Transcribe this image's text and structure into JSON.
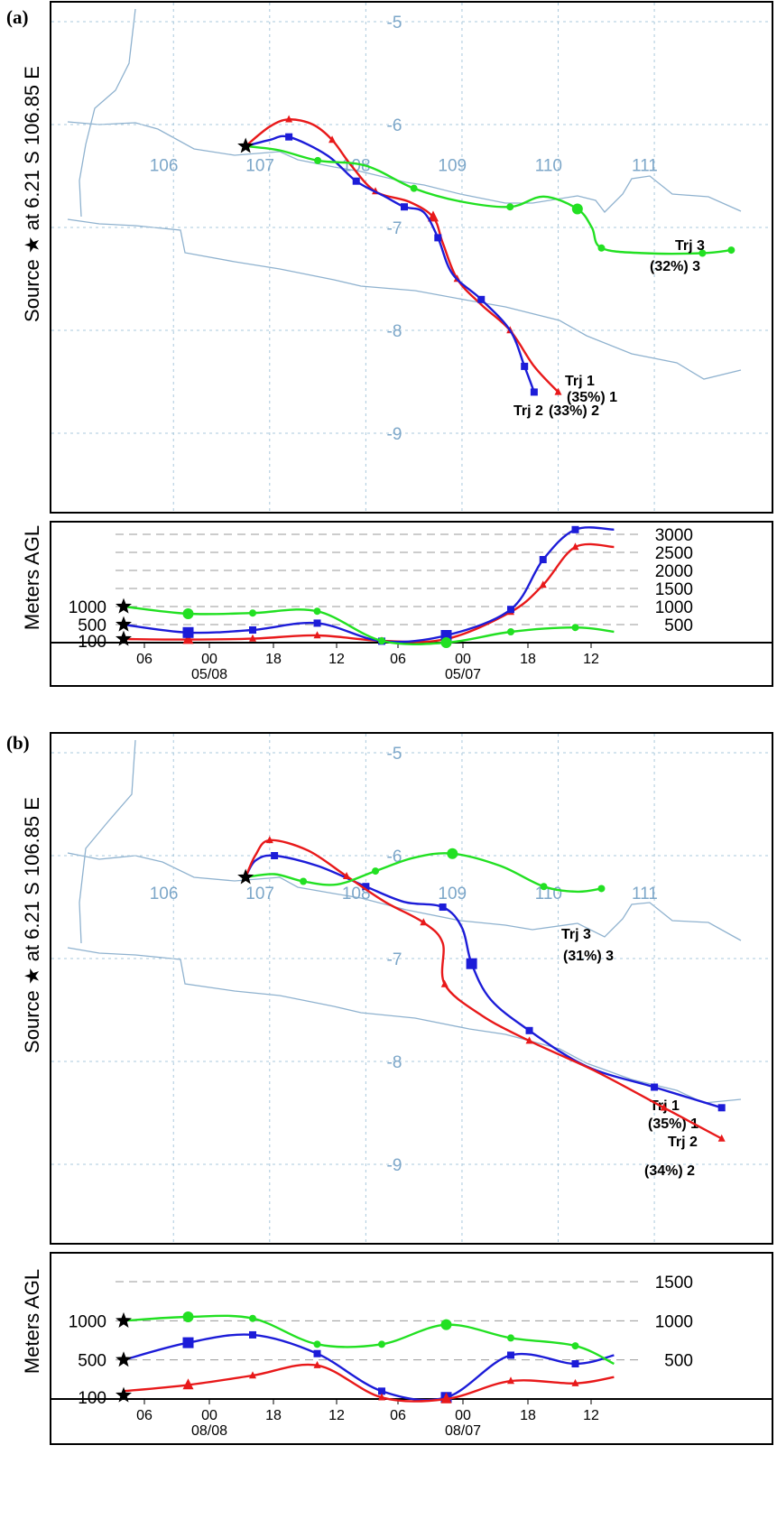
{
  "colors": {
    "red": "#e8191a",
    "blue": "#1c1cd8",
    "green": "#22e022",
    "coast": "#8fb2cf",
    "grid": "#a9c8dc"
  },
  "chart_data": [
    {
      "type": "line",
      "panel_label": "(a)",
      "ylabel": "Source ★ at 6.21 S 106.85 E",
      "height_ylabel": "Meters AGL",
      "source": {
        "lon": 106.85,
        "lat": -6.21
      },
      "lat_ticks": [
        -5,
        -6,
        -7,
        -8,
        -9
      ],
      "lon_ticks": [
        106,
        107,
        108,
        109,
        110,
        111
      ],
      "lon_label_lat": -6.45,
      "height_ticks_right": [
        500,
        1000,
        1500,
        2000,
        2500,
        3000
      ],
      "height_ticks_left": [
        100,
        500,
        1000
      ],
      "hmax": 3200,
      "time_ticks": [
        {
          "label": "06",
          "date": ""
        },
        {
          "label": "00",
          "date": "05/08"
        },
        {
          "label": "18",
          "date": ""
        },
        {
          "label": "12",
          "date": ""
        },
        {
          "label": "06",
          "date": ""
        },
        {
          "label": "00",
          "date": "05/07"
        },
        {
          "label": "18",
          "date": ""
        },
        {
          "label": "12",
          "date": ""
        }
      ],
      "series": [
        {
          "name": "Trj 1",
          "percent_label": "(35%) 1",
          "color": "red",
          "marker": "triangle",
          "start_height": 100,
          "path": [
            [
              106.85,
              -6.21
            ],
            [
              107.1,
              -6.02
            ],
            [
              107.3,
              -5.95
            ],
            [
              107.55,
              -6.0
            ],
            [
              107.75,
              -6.15
            ],
            [
              107.95,
              -6.4
            ],
            [
              108.2,
              -6.65
            ],
            [
              108.55,
              -6.75
            ],
            [
              108.8,
              -6.9
            ],
            [
              108.9,
              -7.15
            ],
            [
              109.05,
              -7.5
            ],
            [
              109.3,
              -7.75
            ],
            [
              109.6,
              -8.0
            ],
            [
              109.85,
              -8.35
            ],
            [
              110.1,
              -8.6
            ]
          ],
          "heights": [
            [
              0,
              100
            ],
            [
              1,
              85
            ],
            [
              2,
              110
            ],
            [
              3,
              200
            ],
            [
              4,
              50
            ],
            [
              5,
              100
            ],
            [
              6,
              850
            ],
            [
              6.5,
              1600
            ],
            [
              7,
              2650
            ],
            [
              7.6,
              2650
            ]
          ]
        },
        {
          "name": "Trj 2",
          "percent_label": "(33%) 2",
          "color": "blue",
          "marker": "square",
          "start_height": 500,
          "path": [
            [
              106.85,
              -6.21
            ],
            [
              107.1,
              -6.15
            ],
            [
              107.3,
              -6.12
            ],
            [
              107.7,
              -6.3
            ],
            [
              108.0,
              -6.55
            ],
            [
              108.3,
              -6.7
            ],
            [
              108.5,
              -6.8
            ],
            [
              108.7,
              -6.85
            ],
            [
              108.85,
              -7.1
            ],
            [
              109.0,
              -7.45
            ],
            [
              109.3,
              -7.7
            ],
            [
              109.6,
              -8.0
            ],
            [
              109.75,
              -8.35
            ],
            [
              109.85,
              -8.6
            ]
          ],
          "heights": [
            [
              0,
              500
            ],
            [
              1,
              280
            ],
            [
              2,
              350
            ],
            [
              3,
              540
            ],
            [
              4,
              40
            ],
            [
              5,
              200
            ],
            [
              6,
              920
            ],
            [
              6.5,
              2300
            ],
            [
              7,
              3130
            ],
            [
              7.6,
              3130
            ]
          ]
        },
        {
          "name": "Trj 3",
          "percent_label": "(32%) 3",
          "color": "green",
          "marker": "circle",
          "start_height": 1000,
          "path": [
            [
              106.85,
              -6.21
            ],
            [
              107.2,
              -6.25
            ],
            [
              107.6,
              -6.35
            ],
            [
              108.1,
              -6.4
            ],
            [
              108.6,
              -6.62
            ],
            [
              109.1,
              -6.75
            ],
            [
              109.6,
              -6.8
            ],
            [
              109.95,
              -6.7
            ],
            [
              110.3,
              -6.82
            ],
            [
              110.45,
              -7.0
            ],
            [
              110.55,
              -7.2
            ],
            [
              111.0,
              -7.25
            ],
            [
              111.6,
              -7.25
            ],
            [
              111.9,
              -7.22
            ]
          ],
          "heights": [
            [
              0,
              1000
            ],
            [
              1,
              800
            ],
            [
              2,
              820
            ],
            [
              3,
              870
            ],
            [
              4,
              50
            ],
            [
              5,
              -30
            ],
            [
              6,
              300
            ],
            [
              7,
              420
            ],
            [
              7.6,
              300
            ]
          ]
        }
      ]
    },
    {
      "type": "line",
      "panel_label": "(b)",
      "ylabel": "Source ★ at 6.21 S 106.85 E",
      "height_ylabel": "Meters AGL",
      "source": {
        "lon": 106.85,
        "lat": -6.21
      },
      "lat_ticks": [
        -5,
        -6,
        -7,
        -8,
        -9
      ],
      "lon_ticks": [
        106,
        107,
        108,
        109,
        110,
        111
      ],
      "lon_label_lat": -6.42,
      "height_ticks_right": [
        500,
        1000,
        1500
      ],
      "height_ticks_left": [
        100,
        500,
        1000
      ],
      "hmax": 1800,
      "time_ticks": [
        {
          "label": "06",
          "date": ""
        },
        {
          "label": "00",
          "date": "08/08"
        },
        {
          "label": "18",
          "date": ""
        },
        {
          "label": "12",
          "date": ""
        },
        {
          "label": "06",
          "date": ""
        },
        {
          "label": "00",
          "date": "08/07"
        },
        {
          "label": "18",
          "date": ""
        },
        {
          "label": "12",
          "date": ""
        }
      ],
      "series": [
        {
          "name": "Trj 1",
          "percent_label": "(35%) 1",
          "color": "blue",
          "marker": "square",
          "start_height": 500,
          "path": [
            [
              106.85,
              -6.21
            ],
            [
              106.95,
              -6.05
            ],
            [
              107.15,
              -6.0
            ],
            [
              107.6,
              -6.1
            ],
            [
              108.1,
              -6.3
            ],
            [
              108.5,
              -6.45
            ],
            [
              108.9,
              -6.5
            ],
            [
              109.1,
              -6.7
            ],
            [
              109.2,
              -7.05
            ],
            [
              109.4,
              -7.4
            ],
            [
              109.8,
              -7.7
            ],
            [
              110.4,
              -8.05
            ],
            [
              111.1,
              -8.25
            ],
            [
              111.8,
              -8.45
            ]
          ],
          "heights": [
            [
              0,
              500
            ],
            [
              1,
              720
            ],
            [
              2,
              820
            ],
            [
              3,
              580
            ],
            [
              4,
              100
            ],
            [
              5,
              20
            ],
            [
              6,
              560
            ],
            [
              7,
              450
            ],
            [
              7.6,
              560
            ]
          ]
        },
        {
          "name": "Trj 2",
          "percent_label": "(34%) 2",
          "color": "red",
          "marker": "triangle",
          "start_height": 100,
          "path": [
            [
              106.85,
              -6.21
            ],
            [
              106.95,
              -6.0
            ],
            [
              107.1,
              -5.85
            ],
            [
              107.5,
              -5.95
            ],
            [
              107.9,
              -6.2
            ],
            [
              108.3,
              -6.45
            ],
            [
              108.7,
              -6.65
            ],
            [
              108.9,
              -6.85
            ],
            [
              108.92,
              -7.25
            ],
            [
              109.3,
              -7.55
            ],
            [
              109.8,
              -7.8
            ],
            [
              110.5,
              -8.1
            ],
            [
              111.2,
              -8.45
            ],
            [
              111.8,
              -8.75
            ]
          ],
          "heights": [
            [
              0,
              100
            ],
            [
              1,
              180
            ],
            [
              2,
              300
            ],
            [
              3,
              430
            ],
            [
              4,
              20
            ],
            [
              5,
              -20
            ],
            [
              6,
              230
            ],
            [
              7,
              200
            ],
            [
              7.6,
              280
            ]
          ]
        },
        {
          "name": "Trj 3",
          "percent_label": "(31%) 3",
          "color": "green",
          "marker": "circle",
          "start_height": 1000,
          "path": [
            [
              106.85,
              -6.21
            ],
            [
              107.15,
              -6.18
            ],
            [
              107.45,
              -6.25
            ],
            [
              107.8,
              -6.28
            ],
            [
              108.2,
              -6.15
            ],
            [
              108.6,
              -6.02
            ],
            [
              109.0,
              -5.98
            ],
            [
              109.5,
              -6.1
            ],
            [
              109.95,
              -6.3
            ],
            [
              110.3,
              -6.35
            ],
            [
              110.55,
              -6.32
            ]
          ],
          "heights": [
            [
              0,
              1000
            ],
            [
              1,
              1050
            ],
            [
              2,
              1030
            ],
            [
              3,
              700
            ],
            [
              4,
              700
            ],
            [
              5,
              950
            ],
            [
              6,
              780
            ],
            [
              7,
              680
            ],
            [
              7.6,
              450
            ]
          ]
        }
      ]
    }
  ]
}
